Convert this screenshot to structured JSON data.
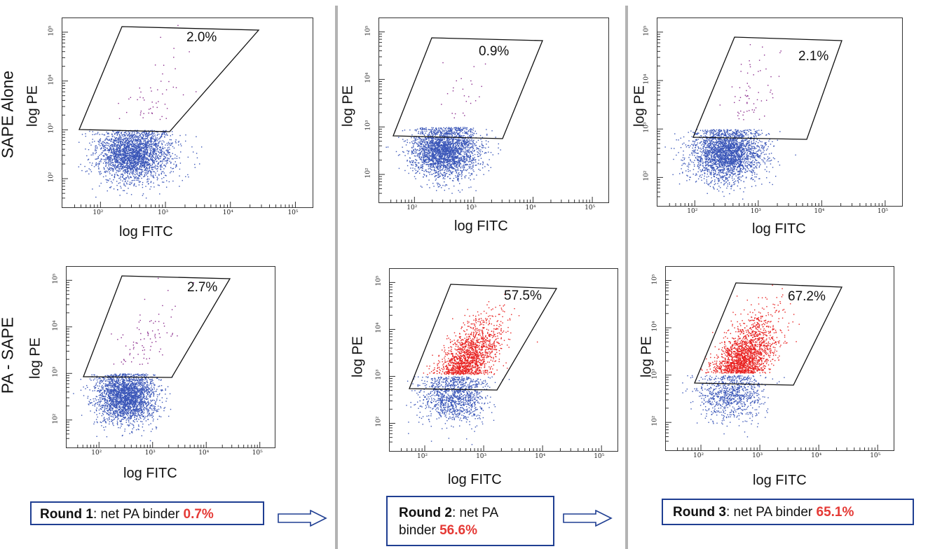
{
  "chart_data": [
    {
      "type": "scatter",
      "row": "SAPE Alone",
      "column": "Round 1",
      "xlabel": "log FITC",
      "ylabel": "log PE",
      "xlim_log10": [
        1.5,
        5.2
      ],
      "ylim_log10": [
        1.5,
        5.2
      ],
      "gate_percent": "2.0%",
      "x_ticks": [
        "10²",
        "10³",
        "10⁴",
        "10⁵"
      ],
      "y_ticks": [
        "10²",
        "10³",
        "10⁴",
        "10⁵"
      ],
      "population_center_log10": {
        "x": 2.5,
        "y": 2.5
      },
      "gated_fraction": 0.02
    },
    {
      "type": "scatter",
      "row": "SAPE Alone",
      "column": "Round 2",
      "xlabel": "log FITC",
      "ylabel": "log PE",
      "xlim_log10": [
        1.5,
        5.2
      ],
      "ylim_log10": [
        1.5,
        5.2
      ],
      "gate_percent": "0.9%",
      "x_ticks": [
        "10²",
        "10³",
        "10⁴",
        "10⁵"
      ],
      "y_ticks": [
        "10²",
        "10³",
        "10⁴",
        "10⁵"
      ],
      "population_center_log10": {
        "x": 2.5,
        "y": 2.5
      },
      "gated_fraction": 0.009
    },
    {
      "type": "scatter",
      "row": "SAPE Alone",
      "column": "Round 3",
      "xlabel": "log FITC",
      "ylabel": "log PE",
      "xlim_log10": [
        1.5,
        5.2
      ],
      "ylim_log10": [
        1.5,
        5.2
      ],
      "gate_percent": "2.1%",
      "x_ticks": [
        "10²",
        "10³",
        "10⁴",
        "10⁵"
      ],
      "y_ticks": [
        "10²",
        "10³",
        "10⁴",
        "10⁵"
      ],
      "population_center_log10": {
        "x": 2.5,
        "y": 2.5
      },
      "gated_fraction": 0.021
    },
    {
      "type": "scatter",
      "row": "PA - SAPE",
      "column": "Round 1",
      "xlabel": "log FITC",
      "ylabel": "log PE",
      "xlim_log10": [
        1.5,
        5.2
      ],
      "ylim_log10": [
        1.5,
        5.2
      ],
      "gate_percent": "2.7%",
      "x_ticks": [
        "10²",
        "10³",
        "10⁴",
        "10⁵"
      ],
      "y_ticks": [
        "10²",
        "10³",
        "10⁴",
        "10⁵"
      ],
      "population_center_log10": {
        "x": 2.5,
        "y": 2.5
      },
      "gated_fraction": 0.027
    },
    {
      "type": "scatter",
      "row": "PA - SAPE",
      "column": "Round 2",
      "xlabel": "log FITC",
      "ylabel": "log PE",
      "xlim_log10": [
        1.5,
        5.2
      ],
      "ylim_log10": [
        1.5,
        5.2
      ],
      "gate_percent": "57.5%",
      "x_ticks": [
        "10²",
        "10³",
        "10⁴",
        "10⁵"
      ],
      "y_ticks": [
        "10²",
        "10³",
        "10⁴",
        "10⁵"
      ],
      "population_center_log10": {
        "x": 2.5,
        "y": 2.6
      },
      "gated_fraction": 0.575
    },
    {
      "type": "scatter",
      "row": "PA - SAPE",
      "column": "Round 3",
      "xlabel": "log FITC",
      "ylabel": "log PE",
      "xlim_log10": [
        1.5,
        5.2
      ],
      "ylim_log10": [
        1.5,
        5.2
      ],
      "gate_percent": "67.2%",
      "x_ticks": [
        "10²",
        "10³",
        "10⁴",
        "10⁵"
      ],
      "y_ticks": [
        "10²",
        "10³",
        "10⁴",
        "10⁵"
      ],
      "population_center_log10": {
        "x": 2.5,
        "y": 2.6
      },
      "gated_fraction": 0.672
    }
  ],
  "row_labels": [
    "SAPE Alone",
    "PA - SAPE"
  ],
  "summaries": [
    {
      "round": "Round 1",
      "text": ": net PA binder ",
      "value": "0.7%"
    },
    {
      "round": "Round 2",
      "text": ": net PA",
      "text2": "binder ",
      "value": "56.6%"
    },
    {
      "round": "Round 3",
      "text": ": net PA binder ",
      "value": "65.1%"
    }
  ],
  "colors": {
    "negative": "#3a56b8",
    "positive": "#e8201f",
    "gated_low": "#8a2a8c",
    "box_border": "#1f3e92",
    "value_red": "#e53935"
  }
}
